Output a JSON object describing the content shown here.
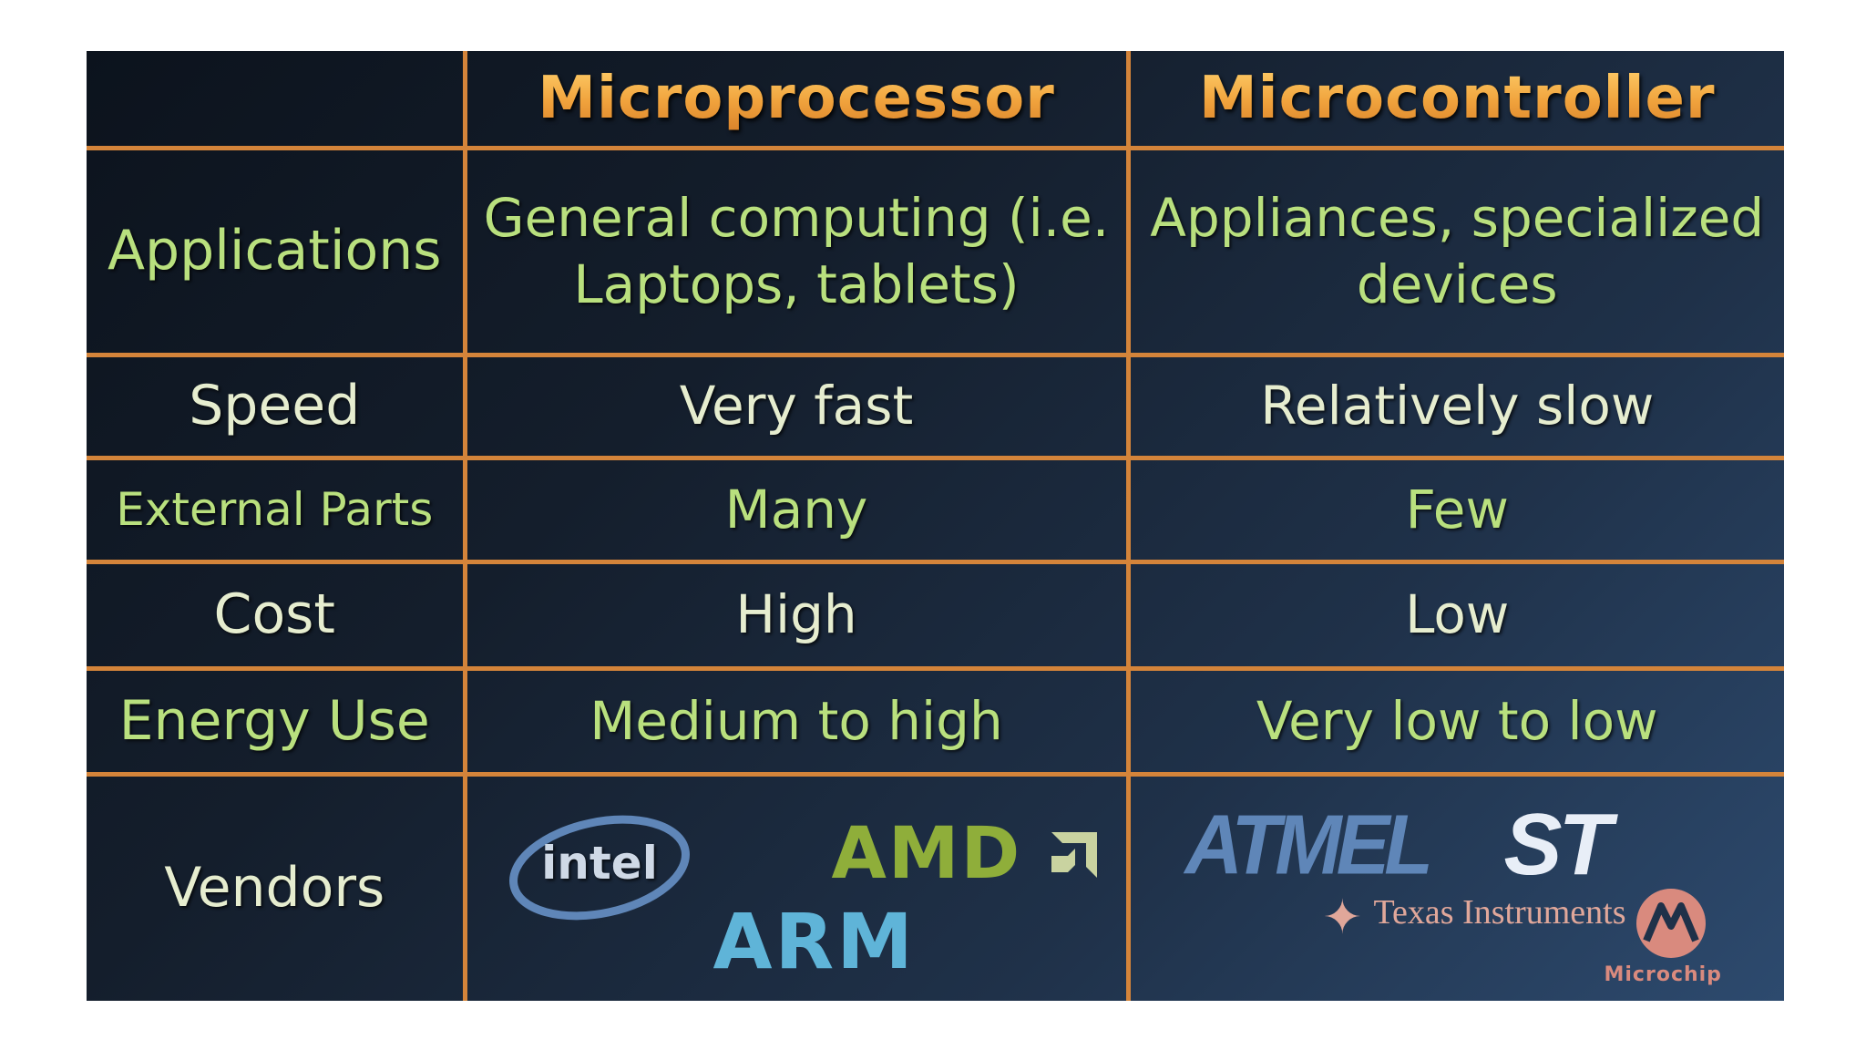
{
  "table": {
    "headers": [
      "",
      "Microprocessor",
      "Microcontroller"
    ],
    "rows": [
      {
        "label": "Applications",
        "microprocessor": "General computing (i.e. Laptops, tablets)",
        "microcontroller": "Appliances, specialized devices"
      },
      {
        "label": "Speed",
        "microprocessor": "Very fast",
        "microcontroller": "Relatively slow"
      },
      {
        "label": "External Parts",
        "microprocessor": "Many",
        "microcontroller": "Few"
      },
      {
        "label": "Cost",
        "microprocessor": "High",
        "microcontroller": "Low"
      },
      {
        "label": "Energy Use",
        "microprocessor": "Medium to high",
        "microcontroller": "Very low to low"
      },
      {
        "label": "Vendors"
      }
    ]
  },
  "vendors": {
    "microprocessor": [
      "intel",
      "AMD",
      "ARM"
    ],
    "microcontroller": [
      "ATMEL",
      "ST",
      "Texas Instruments",
      "Microchip"
    ]
  },
  "colors": {
    "border": "#d4843a",
    "header_text": "#f0a03a",
    "label_green": "#b9e07e",
    "light_text": "#e6edcf"
  }
}
